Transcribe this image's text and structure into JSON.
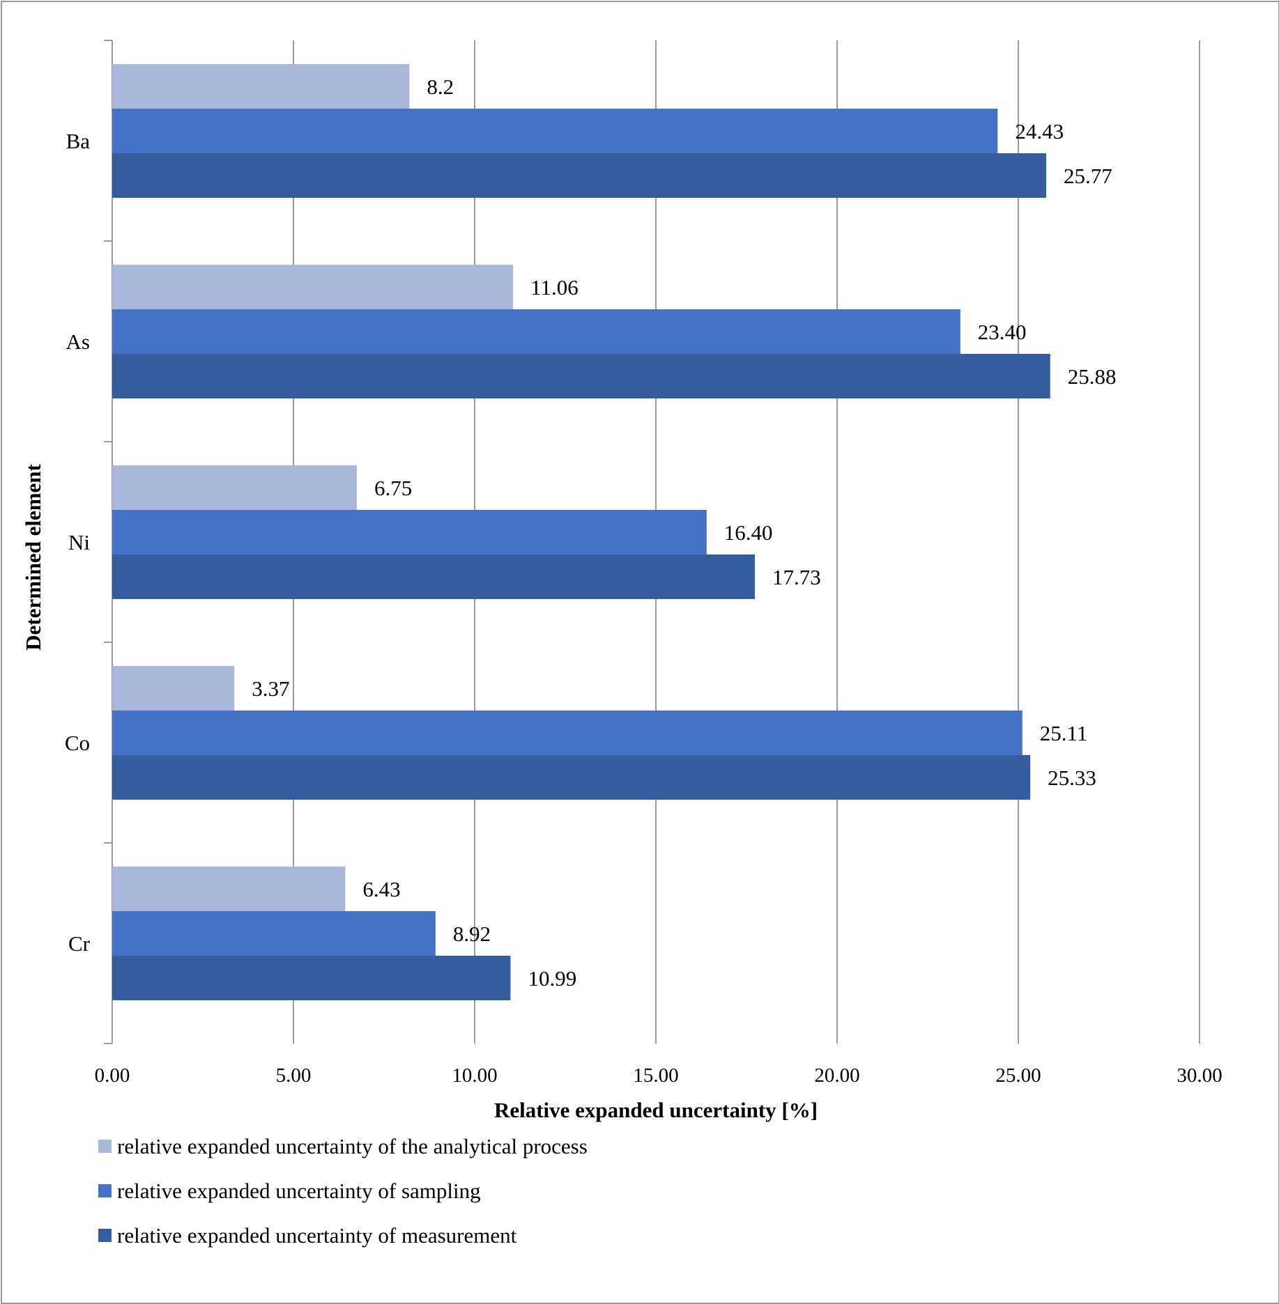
{
  "chart_data": {
    "type": "bar",
    "orientation": "horizontal",
    "title": "",
    "xlabel": "Relative expanded uncertainty [%]",
    "ylabel": "Determined element",
    "xlim": [
      0,
      30
    ],
    "xticks": [
      0,
      5,
      10,
      15,
      20,
      25,
      30
    ],
    "xtick_labels": [
      "0.00",
      "5.00",
      "10.00",
      "15.00",
      "20.00",
      "25.00",
      "30.00"
    ],
    "grid": "vertical",
    "legend_position": "bottom",
    "categories": [
      "Ba",
      "As",
      "Ni",
      "Co",
      "Cr"
    ],
    "series": [
      {
        "name": "relative expanded uncertainty of the analytical process",
        "color": "#a9b7da",
        "values": [
          8.2,
          11.06,
          6.75,
          3.37,
          6.43
        ],
        "labels": [
          "8.2",
          "11.06",
          "6.75",
          "3.37",
          "6.43"
        ]
      },
      {
        "name": "relative expanded uncertainty of sampling",
        "color": "#4472c4",
        "values": [
          24.43,
          23.4,
          16.4,
          25.11,
          8.92
        ],
        "labels": [
          "24.43",
          "23.40",
          "16.40",
          "25.11",
          "8.92"
        ]
      },
      {
        "name": "relative expanded uncertainty of measurement",
        "color": "#355ea0",
        "values": [
          25.77,
          25.88,
          17.73,
          25.33,
          10.99
        ],
        "labels": [
          "25.77",
          "25.88",
          "17.73",
          "25.33",
          "10.99"
        ]
      }
    ]
  }
}
